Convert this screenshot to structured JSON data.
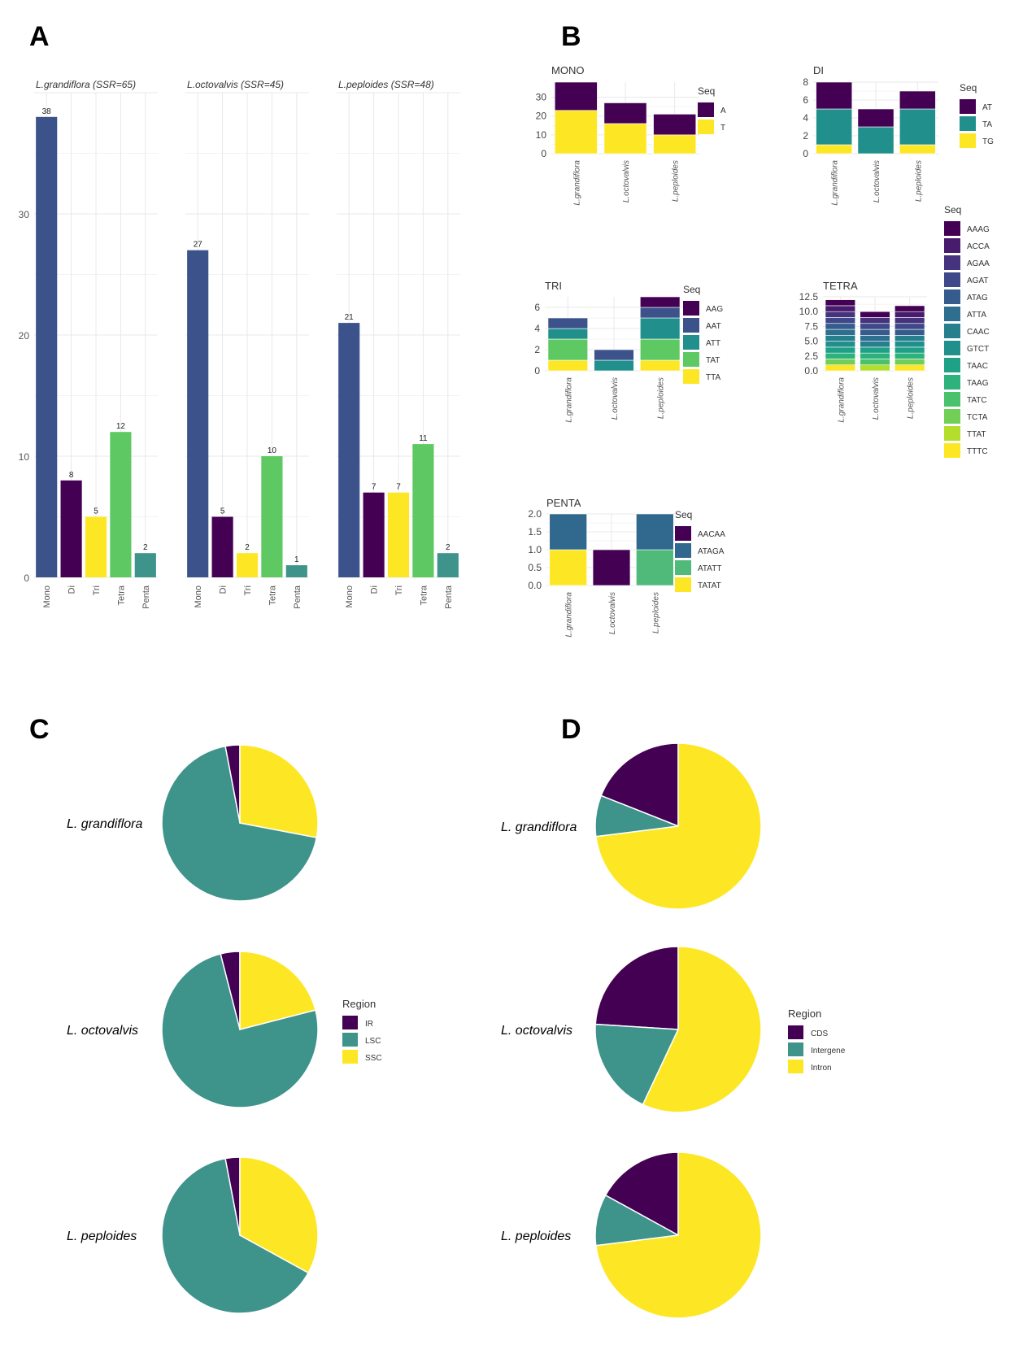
{
  "colors": {
    "viridis_navy": "#3B528B",
    "viridis_purple": "#440154",
    "viridis_yellow": "#FDE725",
    "viridis_green": "#5EC962",
    "viridis_teal": "#3E938B",
    "grid": "#e8e8e8"
  },
  "panel_labels": {
    "a": "A",
    "b": "B",
    "c": "C",
    "d": "D"
  },
  "chart_data": [
    {
      "id": "A",
      "type": "bar",
      "panel_label": "A",
      "categories": [
        "Mono",
        "Di",
        "Tri",
        "Tetra",
        "Penta"
      ],
      "category_colors": [
        "#3B528B",
        "#440154",
        "#FDE725",
        "#5EC962",
        "#3E938B"
      ],
      "ylim": [
        0,
        40
      ],
      "yticks": [
        0,
        10,
        20,
        30
      ],
      "grid": true,
      "facets": [
        {
          "title": "L.grandiflora (SSR=65)",
          "values": [
            38,
            8,
            5,
            12,
            2
          ]
        },
        {
          "title": "L.octovalvis (SSR=45)",
          "values": [
            27,
            5,
            2,
            10,
            1
          ]
        },
        {
          "title": "L.peploides (SSR=48)",
          "values": [
            21,
            7,
            7,
            11,
            2
          ]
        }
      ]
    },
    {
      "id": "B",
      "type": "bar",
      "stacked": true,
      "panel_label": "B",
      "categories": [
        "L.grandiflora",
        "L.octovalvis",
        "L.peploides"
      ],
      "subplots": [
        {
          "title": "MONO",
          "legend_title": "Seq",
          "ylim": [
            0,
            38
          ],
          "yticks": [
            0,
            10,
            20,
            30
          ],
          "series": [
            {
              "name": "A",
              "color": "#440154",
              "values": [
                15,
                11,
                11
              ]
            },
            {
              "name": "T",
              "color": "#FDE725",
              "values": [
                23,
                16,
                10
              ]
            }
          ]
        },
        {
          "title": "DI",
          "legend_title": "Seq",
          "ylim": [
            0,
            8
          ],
          "yticks": [
            0,
            2,
            4,
            6,
            8
          ],
          "series": [
            {
              "name": "AT",
              "color": "#440154",
              "values": [
                3,
                2,
                2
              ]
            },
            {
              "name": "TA",
              "color": "#21908C",
              "values": [
                4,
                3,
                4
              ]
            },
            {
              "name": "TG",
              "color": "#FDE725",
              "values": [
                1,
                0,
                1
              ]
            }
          ]
        },
        {
          "title": "TRI",
          "legend_title": "Seq",
          "ylim": [
            0,
            7
          ],
          "yticks": [
            0,
            2,
            4,
            6
          ],
          "series": [
            {
              "name": "AAG",
              "color": "#440154",
              "values": [
                0,
                0,
                1
              ]
            },
            {
              "name": "AAT",
              "color": "#3B528B",
              "values": [
                1,
                1,
                1
              ]
            },
            {
              "name": "ATT",
              "color": "#21908C",
              "values": [
                1,
                1,
                2
              ]
            },
            {
              "name": "TAT",
              "color": "#5EC962",
              "values": [
                2,
                0,
                2
              ]
            },
            {
              "name": "TTA",
              "color": "#FDE725",
              "values": [
                1,
                0,
                1
              ]
            }
          ]
        },
        {
          "title": "TETRA",
          "legend_title": "Seq",
          "ylim": [
            0,
            12.5
          ],
          "yticks": [
            0.0,
            2.5,
            5.0,
            7.5,
            10.0,
            12.5
          ],
          "series": [
            {
              "name": "AAAG",
              "color": "#440154",
              "values": [
                1,
                1,
                1
              ]
            },
            {
              "name": "ACCA",
              "color": "#481B6D",
              "values": [
                1,
                0,
                1
              ]
            },
            {
              "name": "AGAA",
              "color": "#46337E",
              "values": [
                1,
                1,
                1
              ]
            },
            {
              "name": "AGAT",
              "color": "#3F4889",
              "values": [
                1,
                1,
                1
              ]
            },
            {
              "name": "ATAG",
              "color": "#365C8D",
              "values": [
                1,
                1,
                1
              ]
            },
            {
              "name": "ATTA",
              "color": "#2E6E8E",
              "values": [
                1,
                1,
                0
              ]
            },
            {
              "name": "CAAC",
              "color": "#277F8E",
              "values": [
                1,
                1,
                1
              ]
            },
            {
              "name": "GTCT",
              "color": "#21908C",
              "values": [
                1,
                0,
                1
              ]
            },
            {
              "name": "TAAC",
              "color": "#1FA187",
              "values": [
                1,
                1,
                1
              ]
            },
            {
              "name": "TAAG",
              "color": "#2DB27D",
              "values": [
                1,
                1,
                1
              ]
            },
            {
              "name": "TATC",
              "color": "#4AC16D",
              "values": [
                0,
                1,
                0
              ]
            },
            {
              "name": "TCTA",
              "color": "#71CF57",
              "values": [
                1,
                0,
                1
              ]
            },
            {
              "name": "TTAT",
              "color": "#B4DE2C",
              "values": [
                0,
                1,
                0
              ]
            },
            {
              "name": "TTTC",
              "color": "#FDE725",
              "values": [
                1,
                0,
                1
              ]
            }
          ]
        },
        {
          "title": "PENTA",
          "legend_title": "Seq",
          "ylim": [
            0,
            2
          ],
          "yticks": [
            0.0,
            0.5,
            1.0,
            1.5,
            2.0
          ],
          "series": [
            {
              "name": "AACAA",
              "color": "#440154",
              "values": [
                0,
                1,
                0
              ]
            },
            {
              "name": "ATAGA",
              "color": "#31688E",
              "values": [
                1,
                0,
                1
              ]
            },
            {
              "name": "ATATT",
              "color": "#4FBA7A",
              "values": [
                0,
                0,
                1
              ]
            },
            {
              "name": "TATAT",
              "color": "#FDE725",
              "values": [
                1,
                0,
                0
              ]
            }
          ]
        }
      ]
    },
    {
      "id": "C",
      "type": "pie",
      "panel_label": "C",
      "legend_title": "Region",
      "series_names": [
        "IR",
        "LSC",
        "SSC"
      ],
      "series_colors": [
        "#440154",
        "#3E938B",
        "#FDE725"
      ],
      "pies": [
        {
          "label": "L. grandiflora",
          "values": [
            3,
            69,
            28
          ]
        },
        {
          "label": "L. octovalvis",
          "values": [
            4,
            75,
            21
          ]
        },
        {
          "label": "L. peploides",
          "values": [
            3,
            64,
            33
          ]
        }
      ]
    },
    {
      "id": "D",
      "type": "pie",
      "panel_label": "D",
      "legend_title": "Region",
      "series_names": [
        "CDS",
        "Intergene",
        "Intron"
      ],
      "series_colors": [
        "#440154",
        "#3E938B",
        "#FDE725"
      ],
      "pies": [
        {
          "label": "L. grandiflora",
          "values": [
            19,
            8,
            73
          ]
        },
        {
          "label": "L. octovalvis",
          "values": [
            24,
            19,
            57
          ]
        },
        {
          "label": "L. peploides",
          "values": [
            17,
            10,
            73
          ]
        }
      ]
    }
  ]
}
